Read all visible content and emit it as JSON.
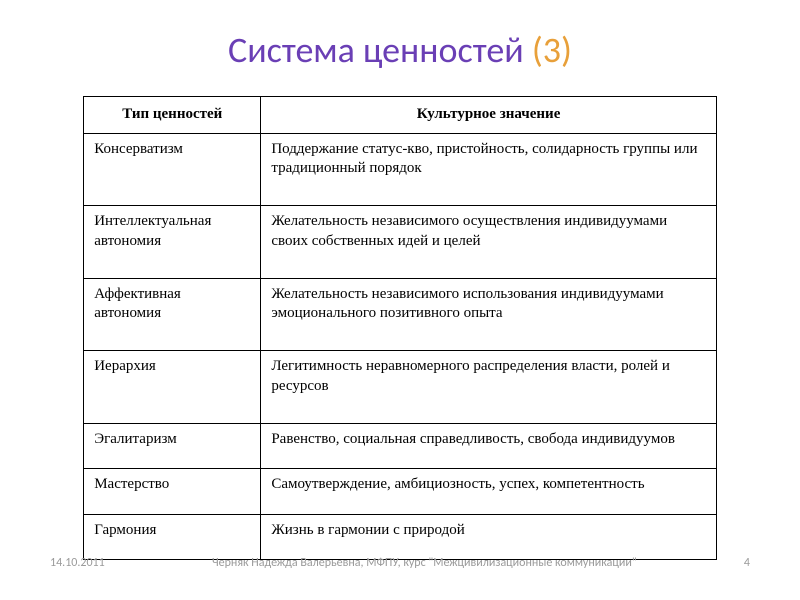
{
  "title": {
    "main": "Система ценностей ",
    "number": "(3)"
  },
  "table": {
    "type": "table",
    "columns": [
      "Тип ценностей",
      "Культурное значение"
    ],
    "rows": [
      [
        "Консерватизм",
        "Поддержание статус-кво, пристойность, солидарность группы или традиционный порядок"
      ],
      [
        "Интеллектуальная автономия",
        "Желательность независимого осуществления индивидуумами своих собственных идей и целей"
      ],
      [
        "Аффективная автономия",
        "Желательность независимого использования индивидуумами эмоционального позитивного опыта"
      ],
      [
        "Иерархия",
        "Легитимность неравномерного распределения власти, ролей и ресурсов"
      ],
      [
        "Эгалитаризм",
        "Равенство, социальная справедливость, свобода индивидуумов"
      ],
      [
        "Мастерство",
        "Самоутверждение, амбициозность, успех, компетентность"
      ],
      [
        "Гармония",
        "Жизнь в гармонии с природой"
      ]
    ],
    "border_color": "#000000",
    "header_fontweight": "bold",
    "cell_fontsize": 15,
    "font_family": "Times New Roman"
  },
  "footer": {
    "date": "14.10.2011",
    "center": "Черняк Надежда Валерьевна, МФПУ, курс \"Межцивилизационные коммуникации\"",
    "pagenum": "4"
  },
  "colors": {
    "title_main": "#6a3fb5",
    "title_number": "#e8a03a",
    "footer_text": "#9a9a9a",
    "background": "#ffffff",
    "border": "#000000"
  }
}
